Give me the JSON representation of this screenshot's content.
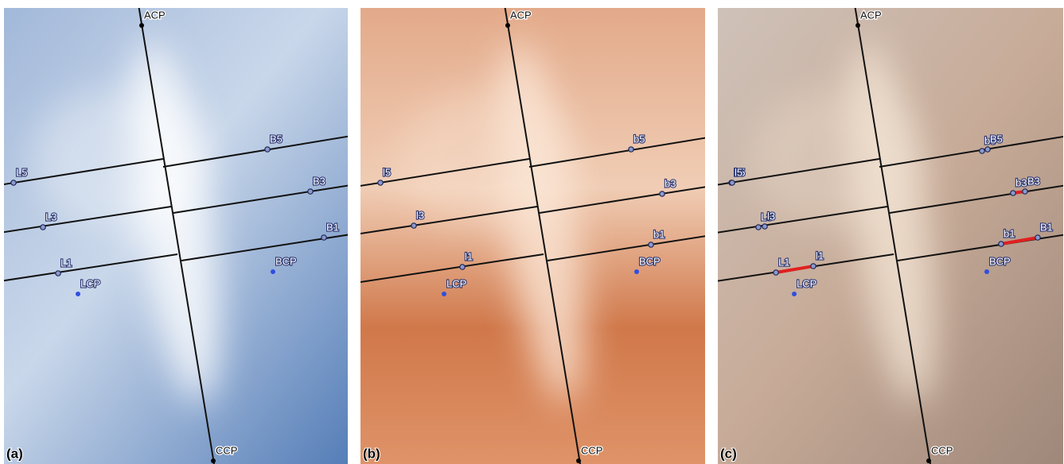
{
  "panels": [
    {
      "label": "(a)",
      "points": [
        {
          "label": "ACP"
        },
        {
          "label": "CCP"
        },
        {
          "label": "L5"
        },
        {
          "label": "L3"
        },
        {
          "label": "L1"
        },
        {
          "label": "LCP"
        },
        {
          "label": "B5"
        },
        {
          "label": "B3"
        },
        {
          "label": "B1"
        },
        {
          "label": "BCP"
        }
      ]
    },
    {
      "label": "(b)",
      "points": [
        {
          "label": "ACP"
        },
        {
          "label": "CCP"
        },
        {
          "label": "l5"
        },
        {
          "label": "l3"
        },
        {
          "label": "l1"
        },
        {
          "label": "LCP"
        },
        {
          "label": "b5"
        },
        {
          "label": "b3"
        },
        {
          "label": "b1"
        },
        {
          "label": "BCP"
        }
      ]
    },
    {
      "label": "(c)",
      "points": [
        {
          "label": "ACP"
        },
        {
          "label": "CCP"
        },
        {
          "label": "L5"
        },
        {
          "label": "l5"
        },
        {
          "label": "L3"
        },
        {
          "label": "l3"
        },
        {
          "label": "L1"
        },
        {
          "label": "l1"
        },
        {
          "label": "LCP"
        },
        {
          "label": "b5"
        },
        {
          "label": "B5"
        },
        {
          "label": "b3"
        },
        {
          "label": "B3"
        },
        {
          "label": "b1"
        },
        {
          "label": "B1"
        },
        {
          "label": "BCP"
        }
      ]
    }
  ]
}
